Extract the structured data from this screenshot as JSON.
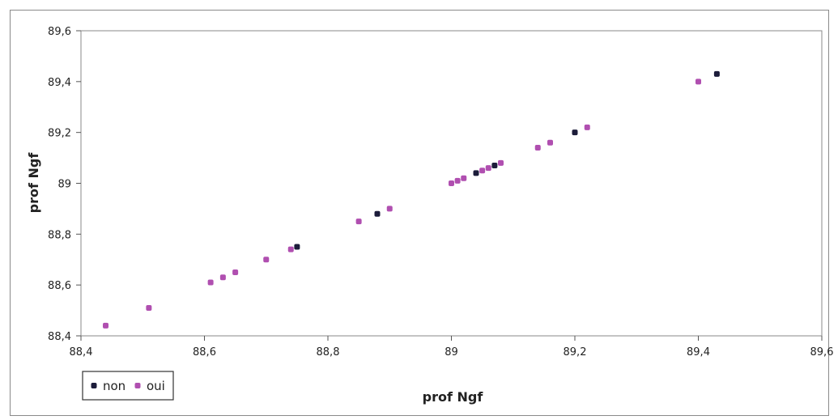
{
  "chart_data": {
    "type": "scatter",
    "title": "",
    "xlabel": "prof Ngf",
    "ylabel": "prof Ngf",
    "xlim": [
      88.4,
      89.6
    ],
    "ylim": [
      88.4,
      89.6
    ],
    "x_ticks": [
      "88,4",
      "88,6",
      "88,8",
      "89",
      "89,2",
      "89,4",
      "89,6"
    ],
    "y_ticks": [
      "88,4",
      "88,6",
      "88,8",
      "89",
      "89,2",
      "89,4",
      "89,6"
    ],
    "x_tick_values": [
      88.4,
      88.6,
      88.8,
      89.0,
      89.2,
      89.4,
      89.6
    ],
    "y_tick_values": [
      88.4,
      88.6,
      88.8,
      89.0,
      89.2,
      89.4,
      89.6
    ],
    "grid": false,
    "legend_position": "bottom-left",
    "series": [
      {
        "name": "non",
        "color": "#1c1c3a",
        "points": [
          [
            88.75,
            88.75
          ],
          [
            88.88,
            88.88
          ],
          [
            89.04,
            89.04
          ],
          [
            89.07,
            89.07
          ],
          [
            89.2,
            89.2
          ],
          [
            89.43,
            89.43
          ]
        ]
      },
      {
        "name": "oui",
        "color": "#b04fb0",
        "points": [
          [
            88.44,
            88.44
          ],
          [
            88.51,
            88.51
          ],
          [
            88.61,
            88.61
          ],
          [
            88.63,
            88.63
          ],
          [
            88.65,
            88.65
          ],
          [
            88.7,
            88.7
          ],
          [
            88.74,
            88.74
          ],
          [
            88.85,
            88.85
          ],
          [
            88.9,
            88.9
          ],
          [
            89.0,
            89.0
          ],
          [
            89.01,
            89.01
          ],
          [
            89.02,
            89.02
          ],
          [
            89.05,
            89.05
          ],
          [
            89.06,
            89.06
          ],
          [
            89.08,
            89.08
          ],
          [
            89.14,
            89.14
          ],
          [
            89.16,
            89.16
          ],
          [
            89.22,
            89.22
          ],
          [
            89.4,
            89.4
          ]
        ]
      }
    ]
  }
}
